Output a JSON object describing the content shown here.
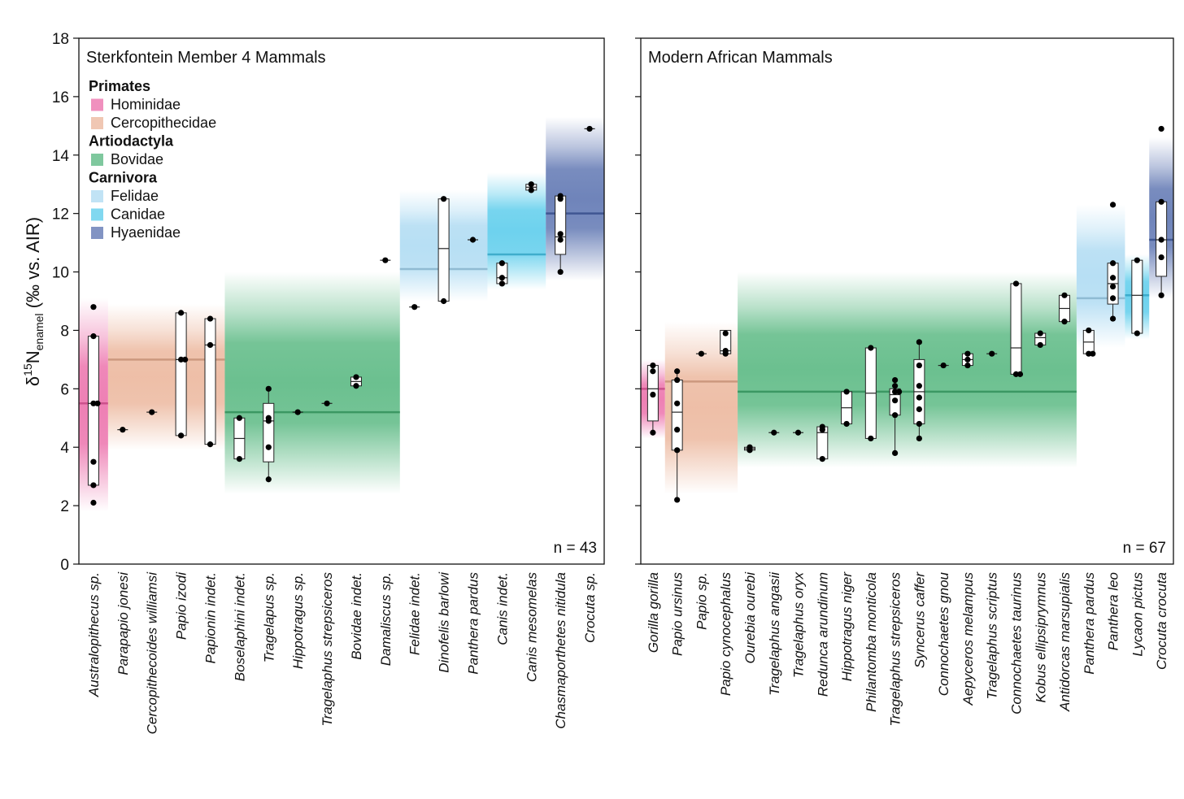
{
  "colors": {
    "Hominidae": "#e8559b",
    "Cercopithecidae": "#e8a98a",
    "Bovidae": "#3aab6a",
    "Felidae": "#9fd4f0",
    "Canidae": "#3dc3e8",
    "Hyaenidae": "#3f5ba3",
    "box_edge": "#222222",
    "point": "#000000"
  },
  "chart_data": {
    "type": "box",
    "ylabel": {
      "prefix": "δ",
      "sup": "15",
      "main": "N",
      "sub": "enamel",
      "suffix": " (‰ vs.  AIR)"
    },
    "ylim": [
      0,
      18
    ],
    "yticks": [
      0,
      2,
      4,
      6,
      8,
      10,
      12,
      14,
      16,
      18
    ],
    "legend": {
      "groups": [
        {
          "heading": "Primates",
          "items": [
            {
              "label": "Hominidae",
              "family": "Hominidae"
            },
            {
              "label": "Cercopithecidae",
              "family": "Cercopithecidae"
            }
          ]
        },
        {
          "heading": "Artiodactyla",
          "items": [
            {
              "label": "Bovidae",
              "family": "Bovidae"
            }
          ]
        },
        {
          "heading": "Carnivora",
          "items": [
            {
              "label": "Felidae",
              "family": "Felidae"
            },
            {
              "label": "Canidae",
              "family": "Canidae"
            },
            {
              "label": "Hyaenidae",
              "family": "Hyaenidae"
            }
          ]
        }
      ]
    },
    "panels": [
      {
        "title": "Sterkfontein Member 4 Mammals",
        "n_label": "n = 43",
        "categories": [
          {
            "label": "Australopithecus sp.",
            "points": [
              8.8,
              7.8,
              5.5,
              5.5,
              3.5,
              2.7,
              2.1
            ],
            "box": [
              2.7,
              5.5,
              7.8
            ],
            "whisker": [
              2.7,
              7.8
            ]
          },
          {
            "label": "Parapapio jonesi",
            "points": [
              4.6
            ],
            "box": [
              4.6,
              4.6,
              4.6
            ]
          },
          {
            "label": "Cercopithecoides williamsi",
            "points": [
              5.2
            ],
            "box": [
              5.2,
              5.2,
              5.2
            ]
          },
          {
            "label": "Papio izodi",
            "points": [
              8.6,
              7.0,
              7.0,
              4.4
            ],
            "box": [
              4.4,
              7.0,
              8.6
            ]
          },
          {
            "label": "Papionin indet.",
            "points": [
              8.4,
              7.5,
              4.1
            ],
            "box": [
              4.1,
              7.5,
              8.4
            ]
          },
          {
            "label": "Boselaphini indet.",
            "points": [
              5.0,
              3.6
            ],
            "box": [
              3.6,
              4.3,
              5.0
            ]
          },
          {
            "label": "Tragelapus sp.",
            "points": [
              6.0,
              5.0,
              4.9,
              4.0,
              2.9
            ],
            "box": [
              3.5,
              4.9,
              5.5
            ],
            "whisker": [
              2.9,
              6.0
            ]
          },
          {
            "label": "Hippotragus sp.",
            "points": [
              5.2
            ],
            "box": [
              5.2,
              5.2,
              5.2
            ]
          },
          {
            "label": "Tragelaphus strepsiceros",
            "points": [
              5.5
            ],
            "box": [
              5.5,
              5.5,
              5.5
            ]
          },
          {
            "label": "Bovidae indet.",
            "points": [
              6.4,
              6.1
            ],
            "box": [
              6.1,
              6.25,
              6.4
            ]
          },
          {
            "label": "Damaliscus sp.",
            "points": [
              10.4
            ],
            "box": [
              10.4,
              10.4,
              10.4
            ]
          },
          {
            "label": "Felidae indet.",
            "points": [
              8.8
            ],
            "box": [
              8.8,
              8.8,
              8.8
            ]
          },
          {
            "label": "Dinofelis barlowi",
            "points": [
              12.5,
              9.0
            ],
            "box": [
              9.0,
              10.8,
              12.5
            ]
          },
          {
            "label": "Panthera pardus",
            "points": [
              11.1
            ],
            "box": [
              11.1,
              11.1,
              11.1
            ]
          },
          {
            "label": "Canis indet.",
            "points": [
              10.3,
              9.8,
              9.6
            ],
            "box": [
              9.6,
              9.8,
              10.3
            ]
          },
          {
            "label": "Canis mesomelas",
            "points": [
              13.0,
              12.8
            ],
            "box": [
              12.8,
              12.9,
              13.0
            ]
          },
          {
            "label": "Chasmaporthetes nitidula",
            "points": [
              12.6,
              12.5,
              11.3,
              11.1,
              10.0
            ],
            "box": [
              10.6,
              11.2,
              12.6
            ],
            "whisker": [
              10.0,
              12.6
            ]
          },
          {
            "label": "Crocuta sp.",
            "points": [
              14.9
            ],
            "box": [
              14.9,
              14.9,
              14.9
            ]
          }
        ],
        "bands": [
          {
            "family": "Hominidae",
            "from": 0,
            "to": 0,
            "ymin": 1.8,
            "ymax": 9.1,
            "mean": 5.5
          },
          {
            "family": "Cercopithecidae",
            "from": 1,
            "to": 4,
            "ymin": 3.9,
            "ymax": 8.9,
            "mean": 7.0
          },
          {
            "family": "Bovidae",
            "from": 5,
            "to": 10,
            "ymin": 2.4,
            "ymax": 10.0,
            "mean": 5.2
          },
          {
            "family": "Felidae",
            "from": 11,
            "to": 13,
            "ymin": 9.0,
            "ymax": 12.8,
            "mean": 10.1
          },
          {
            "family": "Canidae",
            "from": 14,
            "to": 15,
            "ymin": 9.4,
            "ymax": 13.4,
            "mean": 10.6
          },
          {
            "family": "Hyaenidae",
            "from": 16,
            "to": 17,
            "ymin": 9.7,
            "ymax": 15.3,
            "mean": 12.0
          }
        ]
      },
      {
        "title": "Modern African Mammals",
        "n_label": "n = 67",
        "categories": [
          {
            "label": "Gorilla gorilla",
            "points": [
              6.8,
              6.6,
              5.8,
              4.5
            ],
            "box": [
              4.9,
              6.0,
              6.8
            ],
            "whisker": [
              4.5,
              6.8
            ]
          },
          {
            "label": "Papio ursinus",
            "points": [
              6.6,
              6.3,
              5.5,
              4.6,
              3.9,
              2.2
            ],
            "box": [
              3.9,
              5.2,
              6.3
            ],
            "whisker": [
              2.2,
              6.6
            ]
          },
          {
            "label": "Papio sp.",
            "points": [
              7.2
            ],
            "box": [
              7.2,
              7.2,
              7.2
            ]
          },
          {
            "label": "Papio cynocephalus",
            "points": [
              7.9,
              7.3,
              7.2
            ],
            "box": [
              7.2,
              7.3,
              8.0
            ]
          },
          {
            "label": "Ourebia ourebi",
            "points": [
              4.0,
              3.9
            ],
            "box": [
              3.9,
              3.95,
              4.0
            ]
          },
          {
            "label": "Tragelaphus angasii",
            "points": [
              4.5
            ],
            "box": [
              4.5,
              4.5,
              4.5
            ]
          },
          {
            "label": "Tragelaphus oryx",
            "points": [
              4.5
            ],
            "box": [
              4.5,
              4.5,
              4.5
            ]
          },
          {
            "label": "Redunca arundinum",
            "points": [
              4.7,
              4.6,
              3.6
            ],
            "box": [
              3.6,
              4.5,
              4.7
            ]
          },
          {
            "label": "Hippotragus niger",
            "points": [
              5.9,
              4.8
            ],
            "box": [
              4.8,
              5.35,
              5.9
            ]
          },
          {
            "label": "Philantomba monticola",
            "points": [
              7.4,
              4.3
            ],
            "box": [
              4.3,
              5.85,
              7.4
            ]
          },
          {
            "label": "Tragelaphus strepsiceros",
            "points": [
              6.3,
              6.1,
              5.9,
              5.9,
              5.6,
              5.1,
              3.8
            ],
            "box": [
              5.1,
              5.8,
              6.0
            ],
            "whisker": [
              3.8,
              6.3
            ]
          },
          {
            "label": "Syncerus caffer",
            "points": [
              7.6,
              6.8,
              6.1,
              5.7,
              5.3,
              4.8,
              4.3
            ],
            "box": [
              4.8,
              5.9,
              7.0
            ],
            "whisker": [
              4.3,
              7.6
            ]
          },
          {
            "label": "Connochaetes gnou",
            "points": [
              6.8
            ],
            "box": [
              6.8,
              6.8,
              6.8
            ]
          },
          {
            "label": "Aepyceros melampus",
            "points": [
              7.2,
              7.0,
              6.8
            ],
            "box": [
              6.8,
              7.0,
              7.2
            ]
          },
          {
            "label": "Tragelaphus scriptus",
            "points": [
              7.2
            ],
            "box": [
              7.2,
              7.2,
              7.2
            ]
          },
          {
            "label": "Connochaetes taurinus",
            "points": [
              9.6,
              6.5,
              6.5
            ],
            "box": [
              6.5,
              7.4,
              9.6
            ]
          },
          {
            "label": "Kobus ellipsiprymnus",
            "points": [
              7.9,
              7.5
            ],
            "box": [
              7.5,
              7.75,
              7.9
            ]
          },
          {
            "label": "Antidorcas marsupialis",
            "points": [
              9.2,
              8.3
            ],
            "box": [
              8.3,
              8.75,
              9.2
            ]
          },
          {
            "label": "Panthera pardus",
            "points": [
              8.0,
              7.2,
              7.2
            ],
            "box": [
              7.2,
              7.6,
              8.0
            ]
          },
          {
            "label": "Panthera leo",
            "points": [
              12.3,
              10.3,
              9.8,
              9.5,
              9.1,
              8.4
            ],
            "box": [
              8.9,
              9.6,
              10.3
            ],
            "whisker": [
              8.4,
              10.3
            ]
          },
          {
            "label": "Lycaon pictus",
            "points": [
              10.4,
              7.9
            ],
            "box": [
              7.9,
              9.2,
              10.4
            ]
          },
          {
            "label": "Crocuta crocuta",
            "points": [
              14.9,
              12.4,
              11.1,
              10.5,
              9.2
            ],
            "box": [
              9.85,
              11.1,
              12.4
            ],
            "whisker": [
              9.2,
              12.4
            ]
          }
        ],
        "bands": [
          {
            "family": "Hominidae",
            "from": 0,
            "to": 0,
            "ymin": 4.3,
            "ymax": 7.0,
            "mean": 6.0
          },
          {
            "family": "Cercopithecidae",
            "from": 1,
            "to": 3,
            "ymin": 2.4,
            "ymax": 8.3,
            "mean": 6.25
          },
          {
            "family": "Bovidae",
            "from": 4,
            "to": 17,
            "ymin": 3.3,
            "ymax": 10.0,
            "mean": 5.9
          },
          {
            "family": "Felidae",
            "from": 18,
            "to": 19,
            "ymin": 7.4,
            "ymax": 12.3,
            "mean": 9.1
          },
          {
            "family": "Canidae",
            "from": 20,
            "to": 20,
            "ymin": 7.7,
            "ymax": 10.6,
            "mean": 9.2
          },
          {
            "family": "Hyaenidae",
            "from": 21,
            "to": 21,
            "ymin": 9.1,
            "ymax": 14.6,
            "mean": 11.1
          }
        ]
      }
    ]
  }
}
